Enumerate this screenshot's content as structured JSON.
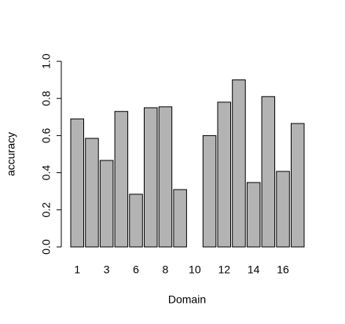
{
  "chart_data": {
    "type": "bar",
    "categories": [
      "1",
      null,
      "3",
      null,
      "6",
      null,
      "8",
      null,
      "10",
      null,
      "12",
      null,
      "14",
      null,
      "16",
      null
    ],
    "values": [
      0.69,
      0.585,
      0.466,
      0.73,
      0.284,
      0.75,
      0.755,
      0.309,
      0,
      0.6,
      0.78,
      0.9,
      0.347,
      0.81,
      0.407,
      0.665
    ],
    "color": "#b3b3b3",
    "xlabel": "Domain",
    "ylabel": "accuracy",
    "ylim": [
      0,
      1
    ],
    "yticks": [
      {
        "value": 0,
        "label": "0.0"
      },
      0.2,
      0.4,
      0.6,
      0.8,
      {
        "value": 1,
        "label": "1.0"
      }
    ]
  }
}
